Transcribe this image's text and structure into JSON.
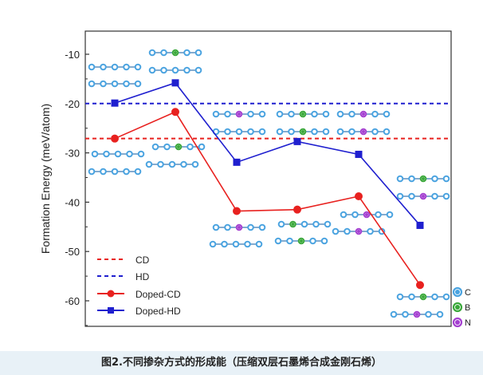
{
  "caption": "图2.不同掺杂方式的形成能（压缩双层石墨烯合成金刚石烯）",
  "chart_data": {
    "type": "line",
    "ylabel": "Formation Energy (meV/atom)",
    "xlabel": "",
    "ylim": [
      -65,
      -5
    ],
    "yticks": [
      -10,
      -20,
      -30,
      -40,
      -50,
      -60
    ],
    "x": [
      1,
      2,
      3,
      4,
      5,
      6
    ],
    "series": [
      {
        "name": "Doped-CD",
        "values": [
          -27.1,
          -21.7,
          -41.8,
          -41.5,
          -38.8,
          -56.8
        ],
        "color": "#e8211f",
        "marker": "circle"
      },
      {
        "name": "Doped-HD",
        "values": [
          -19.9,
          -15.8,
          -31.9,
          -27.7,
          -30.3,
          -44.7
        ],
        "color": "#1f1fcf",
        "marker": "square"
      }
    ],
    "reference_lines": [
      {
        "name": "CD",
        "value": -27.1,
        "color": "#e8211f",
        "style": "dashed"
      },
      {
        "name": "HD",
        "value": -20.0,
        "color": "#1f1fcf",
        "style": "dashed"
      }
    ],
    "atom_legend": [
      {
        "name": "C",
        "color": "#4aa3e0"
      },
      {
        "name": "B",
        "color": "#3aa83a"
      },
      {
        "name": "N",
        "color": "#a43fd0"
      }
    ],
    "legend_position": "bottom-left"
  }
}
